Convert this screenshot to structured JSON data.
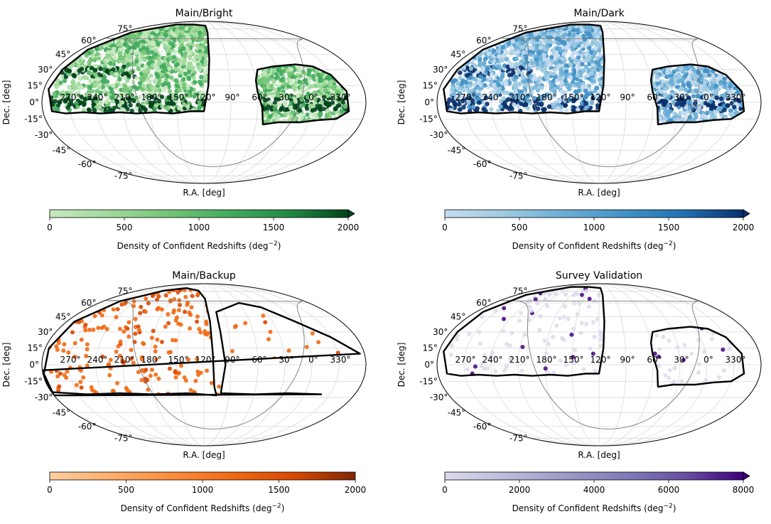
{
  "chart_data": [
    {
      "type": "heatmap",
      "projection": "mollweide",
      "title": "Main/Bright",
      "xlabel": "R.A. [deg]",
      "ylabel": "Dec. [deg]",
      "ra_tick_labels": [
        "270°",
        "240°",
        "210°",
        "180°",
        "150°",
        "120°",
        "90°",
        "60°",
        "30°",
        "0°",
        "330°"
      ],
      "dec_tick_labels": [
        "75°",
        "60°",
        "45°",
        "30°",
        "15°",
        "0°",
        "-15°",
        "-30°",
        "-45°",
        "-60°",
        "-75°"
      ],
      "colorbar": {
        "label": "Density of Confident Redshifts (deg$^{-2}$)",
        "label_text": "Density of Confident Redshifts (deg",
        "label_sup": "−2",
        "label_close": ")",
        "range": [
          0,
          2000
        ],
        "ticks": [
          "0",
          "500",
          "1000",
          "1500",
          "2000"
        ],
        "extend": "max",
        "cmap": "Greens",
        "colors": [
          "#c7e9c0",
          "#a1d99b",
          "#74c476",
          "#41ab5d",
          "#238b45",
          "#00441b"
        ]
      },
      "footprint_regions": [
        {
          "name": "north-galactic-cap",
          "ra_range": [
            115,
            290
          ],
          "dec_range": [
            -8,
            80
          ]
        },
        {
          "name": "south-galactic-cap",
          "ra_range": [
            -40,
            60
          ],
          "dec_range": [
            -20,
            35
          ]
        }
      ]
    },
    {
      "type": "heatmap",
      "projection": "mollweide",
      "title": "Main/Dark",
      "xlabel": "R.A. [deg]",
      "ylabel": "Dec. [deg]",
      "ra_tick_labels": [
        "270°",
        "240°",
        "210°",
        "180°",
        "150°",
        "120°",
        "90°",
        "60°",
        "30°",
        "0°",
        "330°"
      ],
      "dec_tick_labels": [
        "75°",
        "60°",
        "45°",
        "30°",
        "15°",
        "0°",
        "-15°",
        "-30°",
        "-45°",
        "-60°",
        "-75°"
      ],
      "colorbar": {
        "label": "Density of Confident Redshifts (deg$^{-2}$)",
        "label_text": "Density of Confident Redshifts (deg",
        "label_sup": "−2",
        "label_close": ")",
        "range": [
          0,
          2000
        ],
        "ticks": [
          "0",
          "500",
          "1000",
          "1500",
          "2000"
        ],
        "extend": "max",
        "cmap": "Blues",
        "colors": [
          "#c6dbef",
          "#9ecae1",
          "#6baed6",
          "#4292c6",
          "#2171b5",
          "#08306b"
        ]
      },
      "footprint_regions": [
        {
          "name": "north-galactic-cap",
          "ra_range": [
            115,
            290
          ],
          "dec_range": [
            -8,
            80
          ]
        },
        {
          "name": "south-galactic-cap",
          "ra_range": [
            -40,
            70
          ],
          "dec_range": [
            -20,
            35
          ]
        }
      ]
    },
    {
      "type": "heatmap",
      "projection": "mollweide",
      "title": "Main/Backup",
      "xlabel": "R.A. [deg]",
      "ylabel": "Dec. [deg]",
      "ra_tick_labels": [
        "270°",
        "240°",
        "210°",
        "180°",
        "150°",
        "120°",
        "90°",
        "60°",
        "30°",
        "0°",
        "330°"
      ],
      "dec_tick_labels": [
        "75°",
        "60°",
        "45°",
        "30°",
        "15°",
        "0°",
        "-15°",
        "-30°",
        "-45°",
        "-60°",
        "-75°"
      ],
      "colorbar": {
        "label": "Density of Confident Redshifts (deg$^{-2}$)",
        "label_text": "Density of Confident Redshifts (deg",
        "label_sup": "−2",
        "label_close": ")",
        "range": [
          0,
          2000
        ],
        "ticks": [
          "0",
          "500",
          "1000",
          "1500",
          "2000"
        ],
        "extend": "neither",
        "cmap": "Oranges",
        "colors": [
          "#fdd0a2",
          "#fdae6b",
          "#fd8d3c",
          "#f16913",
          "#d94801",
          "#7f2704"
        ]
      },
      "footprint_regions": [
        {
          "name": "north-region",
          "ra_range": [
            110,
            300
          ],
          "dec_range": [
            -28,
            80
          ]
        },
        {
          "name": "south-region",
          "ra_range": [
            -60,
            105
          ],
          "dec_range": [
            -28,
            60
          ]
        }
      ]
    },
    {
      "type": "heatmap",
      "projection": "mollweide",
      "title": "Survey Validation",
      "xlabel": "R.A. [deg]",
      "ylabel": "Dec. [deg]",
      "ra_tick_labels": [
        "270°",
        "240°",
        "210°",
        "180°",
        "150°",
        "120°",
        "90°",
        "60°",
        "30°",
        "0°",
        "330°"
      ],
      "dec_tick_labels": [
        "75°",
        "60°",
        "45°",
        "30°",
        "15°",
        "0°",
        "-15°",
        "-30°",
        "-45°",
        "-60°",
        "-75°"
      ],
      "colorbar": {
        "label": "Density of Confident Redshifts (deg$^{-2}$)",
        "label_text": "Density of Confident Redshifts (deg",
        "label_sup": "−2",
        "label_close": ")",
        "range": [
          0,
          8000
        ],
        "ticks": [
          "0",
          "2000",
          "4000",
          "6000",
          "8000"
        ],
        "extend": "max",
        "cmap": "Purples",
        "colors": [
          "#dadaeb",
          "#bcbddc",
          "#9e9ac8",
          "#807dba",
          "#6a51a3",
          "#3f007d"
        ]
      },
      "footprint_regions": [
        {
          "name": "north-galactic-cap",
          "ra_range": [
            115,
            290
          ],
          "dec_range": [
            -8,
            80
          ]
        },
        {
          "name": "south-galactic-cap",
          "ra_range": [
            -40,
            70
          ],
          "dec_range": [
            -20,
            35
          ]
        }
      ]
    }
  ]
}
